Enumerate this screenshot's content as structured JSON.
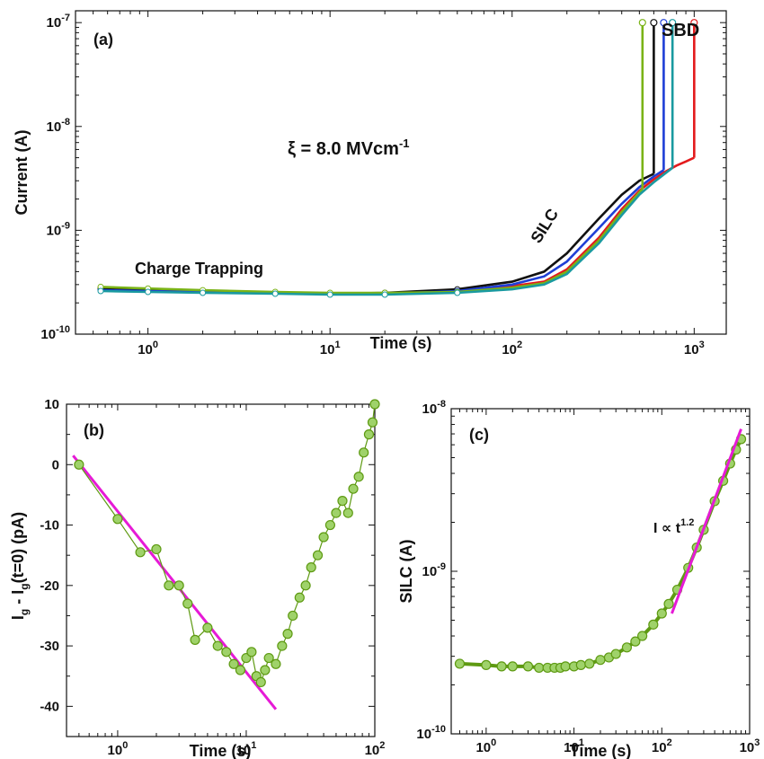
{
  "chart_data": [
    {
      "panel": "(a)",
      "type": "line",
      "xlabel": "Time (s)",
      "ylabel": "Current (A)",
      "xscale": "log",
      "yscale": "log",
      "xlim": [
        0.4,
        1500
      ],
      "ylim": [
        1e-10,
        1.3e-07
      ],
      "x_ticks": [
        {
          "v": 1,
          "base": "10",
          "exp": "0"
        },
        {
          "v": 10,
          "base": "10",
          "exp": "1"
        },
        {
          "v": 100,
          "base": "10",
          "exp": "2"
        },
        {
          "v": 1000,
          "base": "10",
          "exp": "3"
        }
      ],
      "y_ticks": [
        {
          "v": 1e-10,
          "base": "10",
          "exp": "-10"
        },
        {
          "v": 1e-09,
          "base": "10",
          "exp": "-9"
        },
        {
          "v": 1e-08,
          "base": "10",
          "exp": "-8"
        },
        {
          "v": 1e-07,
          "base": "10",
          "exp": "-7"
        }
      ],
      "annotations": {
        "field_prefix": "ξ = 8.0 MVcm",
        "field_sup": "-1",
        "sbd": "SBD",
        "silc": "SILC",
        "charge_trapping": "Charge Trapping"
      },
      "series": [
        {
          "color": "#e31a1c",
          "breakdown_time": 1000,
          "breakdown_current": 1e-07,
          "x": [
            0.55,
            1,
            2,
            5,
            10,
            20,
            50,
            100,
            150,
            200,
            300,
            400,
            500,
            600,
            700,
            800,
            900,
            1000
          ],
          "y": [
            2.8e-10,
            2.7e-10,
            2.6e-10,
            2.5e-10,
            2.45e-10,
            2.45e-10,
            2.6e-10,
            2.9e-10,
            3.2e-10,
            4.2e-10,
            8.5e-10,
            1.6e-09,
            2.4e-09,
            3.1e-09,
            3.7e-09,
            4.2e-09,
            4.6e-09,
            5e-09
          ]
        },
        {
          "color": "#111111",
          "breakdown_time": 600,
          "breakdown_current": 1e-07,
          "x": [
            0.55,
            1,
            2,
            5,
            10,
            20,
            50,
            100,
            150,
            200,
            300,
            400,
            500,
            600
          ],
          "y": [
            2.7e-10,
            2.65e-10,
            2.55e-10,
            2.5e-10,
            2.45e-10,
            2.5e-10,
            2.7e-10,
            3.2e-10,
            4e-10,
            6e-10,
            1.3e-09,
            2.2e-09,
            3e-09,
            3.5e-09
          ]
        },
        {
          "color": "#1f3fd6",
          "breakdown_time": 680,
          "breakdown_current": 1e-07,
          "x": [
            0.55,
            1,
            2,
            5,
            10,
            20,
            50,
            100,
            150,
            200,
            300,
            400,
            500,
            600,
            680
          ],
          "y": [
            2.65e-10,
            2.6e-10,
            2.55e-10,
            2.5e-10,
            2.45e-10,
            2.45e-10,
            2.6e-10,
            3e-10,
            3.6e-10,
            5e-10,
            1.05e-09,
            1.8e-09,
            2.6e-09,
            3.3e-09,
            3.8e-09
          ]
        },
        {
          "color": "#7ab317",
          "breakdown_time": 520,
          "breakdown_current": 1e-07,
          "x": [
            0.55,
            1,
            2,
            5,
            10,
            20,
            50,
            100,
            150,
            200,
            300,
            400,
            520
          ],
          "y": [
            2.85e-10,
            2.75e-10,
            2.65e-10,
            2.55e-10,
            2.5e-10,
            2.5e-10,
            2.55e-10,
            2.8e-10,
            3.1e-10,
            4e-10,
            8e-10,
            1.5e-09,
            2.5e-09
          ]
        },
        {
          "color": "#1a9aa0",
          "breakdown_time": 760,
          "breakdown_current": 1e-07,
          "x": [
            0.55,
            1,
            2,
            5,
            10,
            20,
            50,
            100,
            150,
            200,
            300,
            400,
            500,
            600,
            760
          ],
          "y": [
            2.6e-10,
            2.55e-10,
            2.5e-10,
            2.45e-10,
            2.4e-10,
            2.4e-10,
            2.5e-10,
            2.7e-10,
            3e-10,
            3.8e-10,
            7.5e-10,
            1.4e-09,
            2.2e-09,
            2.9e-09,
            4e-09
          ]
        }
      ]
    },
    {
      "panel": "(b)",
      "type": "scatter",
      "xlabel": "Time (s)",
      "ylabel_main": "I",
      "ylabel_parts": [
        "g",
        " - I",
        "g",
        "(t=0) (pA)"
      ],
      "xscale": "log",
      "xlim": [
        0.4,
        100
      ],
      "ylim": [
        -45,
        10
      ],
      "x_ticks": [
        {
          "v": 1,
          "base": "10",
          "exp": "0"
        },
        {
          "v": 10,
          "base": "10",
          "exp": "1"
        },
        {
          "v": 100,
          "base": "10",
          "exp": "2"
        }
      ],
      "y_ticks": [
        10,
        0,
        -10,
        -20,
        -30,
        -40
      ],
      "marker_color": "#9fd26a",
      "marker_stroke": "#5e9a12",
      "fit_color": "#e61ad6",
      "fit_line": {
        "x": [
          0.45,
          17
        ],
        "y": [
          1.5,
          -40.5
        ]
      },
      "x": [
        0.5,
        1,
        1.5,
        2,
        2.5,
        3,
        3.5,
        4,
        5,
        6,
        7,
        8,
        9,
        10,
        11,
        12,
        13,
        14,
        15,
        17,
        19,
        21,
        23,
        26,
        29,
        32,
        36,
        40,
        45,
        50,
        56,
        62,
        68,
        75,
        82,
        90,
        96,
        100
      ],
      "y": [
        0,
        -9,
        -14.5,
        -14,
        -20,
        -20,
        -23,
        -29,
        -27,
        -30,
        -31,
        -33,
        -34,
        -32,
        -31,
        -35,
        -36,
        -34,
        -32,
        -33,
        -30,
        -28,
        -25,
        -22,
        -20,
        -17,
        -15,
        -12,
        -10,
        -8,
        -6,
        -8,
        -4,
        -2,
        2,
        5,
        7,
        10
      ]
    },
    {
      "panel": "(c)",
      "type": "scatter",
      "xlabel": "Time (s)",
      "ylabel": "SILC (A)",
      "xscale": "log",
      "yscale": "log",
      "xlim": [
        0.4,
        1000
      ],
      "ylim": [
        1e-10,
        1e-08
      ],
      "x_ticks": [
        {
          "v": 1,
          "base": "10",
          "exp": "0"
        },
        {
          "v": 10,
          "base": "10",
          "exp": "1"
        },
        {
          "v": 100,
          "base": "10",
          "exp": "2"
        },
        {
          "v": 1000,
          "base": "10",
          "exp": "3"
        }
      ],
      "y_ticks": [
        {
          "v": 1e-10,
          "base": "10",
          "exp": "-10"
        },
        {
          "v": 1e-09,
          "base": "10",
          "exp": "-9"
        },
        {
          "v": 1e-08,
          "base": "10",
          "exp": "-8"
        }
      ],
      "annotation_prefix": "I ∝ t",
      "annotation_sup": "1.2",
      "marker_color": "#9fd26a",
      "marker_stroke": "#5e9a12",
      "fit_color": "#e61ad6",
      "fit_line": {
        "x": [
          130,
          800
        ],
        "y": [
          5.5e-10,
          7.5e-09
        ]
      },
      "x": [
        0.5,
        1,
        1.5,
        2,
        3,
        4,
        5,
        6,
        7,
        8,
        10,
        12,
        15,
        20,
        25,
        30,
        40,
        50,
        60,
        80,
        100,
        120,
        150,
        200,
        250,
        300,
        400,
        500,
        600,
        700,
        800
      ],
      "y": [
        2.7e-10,
        2.65e-10,
        2.6e-10,
        2.6e-10,
        2.6e-10,
        2.55e-10,
        2.55e-10,
        2.55e-10,
        2.55e-10,
        2.6e-10,
        2.6e-10,
        2.65e-10,
        2.7e-10,
        2.85e-10,
        2.95e-10,
        3.1e-10,
        3.4e-10,
        3.7e-10,
        4e-10,
        4.7e-10,
        5.5e-10,
        6.3e-10,
        7.7e-10,
        1.05e-09,
        1.4e-09,
        1.8e-09,
        2.7e-09,
        3.6e-09,
        4.6e-09,
        5.6e-09,
        6.5e-09
      ]
    }
  ]
}
